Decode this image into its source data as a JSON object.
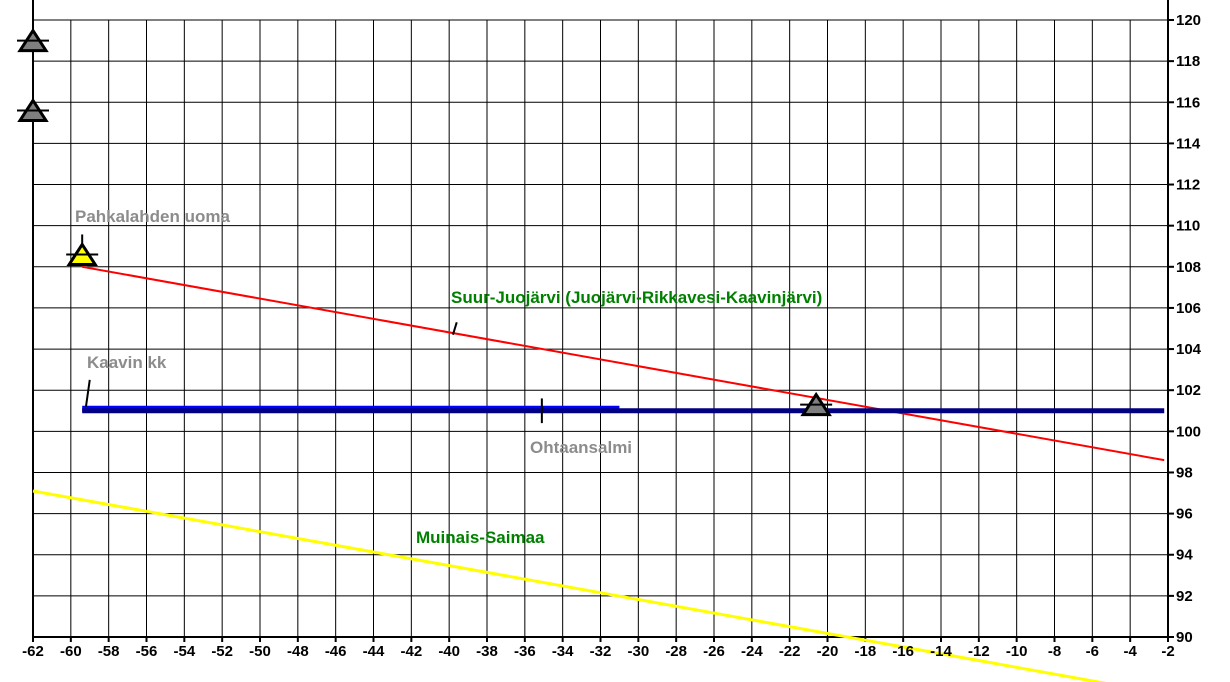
{
  "chart_data": {
    "type": "line",
    "title": "",
    "xlabel": "",
    "ylabel": "",
    "xlim": [
      -62,
      -2
    ],
    "ylim": [
      90,
      120
    ],
    "x_ticks": [
      -62,
      -60,
      -58,
      -56,
      -54,
      -52,
      -50,
      -48,
      -46,
      -44,
      -42,
      -40,
      -38,
      -36,
      -34,
      -32,
      -30,
      -28,
      -26,
      -24,
      -22,
      -20,
      -18,
      -16,
      -14,
      -12,
      -10,
      -8,
      -6,
      -4,
      -2
    ],
    "y_ticks": [
      90,
      92,
      94,
      96,
      98,
      100,
      102,
      104,
      106,
      108,
      110,
      112,
      114,
      116,
      118,
      120
    ],
    "grid": true,
    "y_axis_side": "right",
    "series": [
      {
        "name": "Suur-Juojärvi (Juojärvi-Rikkavesi-Kaavinjärvi)",
        "color": "#ff0000",
        "x": [
          -59.4,
          -2.2
        ],
        "y": [
          108.0,
          98.6
        ]
      },
      {
        "name": "Muinais-Saimaa",
        "color": "#ffff00",
        "x": [
          -62,
          -5
        ],
        "y": [
          97.1,
          87.7
        ]
      },
      {
        "name": "Kaavin kk",
        "color": "#0000ff",
        "x": [
          -59.4,
          -31
        ],
        "y": [
          101.1,
          101.1
        ]
      },
      {
        "name": "",
        "color": "#000080",
        "x": [
          -59.4,
          -2.2
        ],
        "y": [
          101.0,
          101.0
        ]
      }
    ],
    "annotations": [
      {
        "text": "Pahkalahden uoma",
        "color": "#8c8c8c"
      },
      {
        "text": "Suur-Juojärvi (Juojärvi-Rikkavesi-Kaavinjärvi)",
        "color": "#008000"
      },
      {
        "text": "Kaavin kk",
        "color": "#8c8c8c"
      },
      {
        "text": "Ohtaansalmi",
        "color": "#8c8c8c"
      },
      {
        "text": "Muinais-Saimaa",
        "color": "#008000"
      }
    ],
    "markers": [
      {
        "x": -62,
        "y": 119.0,
        "color": "#7f7f7f",
        "shape": "triangle"
      },
      {
        "x": -62,
        "y": 115.6,
        "color": "#7f7f7f",
        "shape": "triangle"
      },
      {
        "x": -59.4,
        "y": 108.6,
        "color": "#ffff00",
        "shape": "triangle"
      },
      {
        "x": -20.6,
        "y": 101.3,
        "color": "#7f7f7f",
        "shape": "triangle"
      }
    ]
  }
}
